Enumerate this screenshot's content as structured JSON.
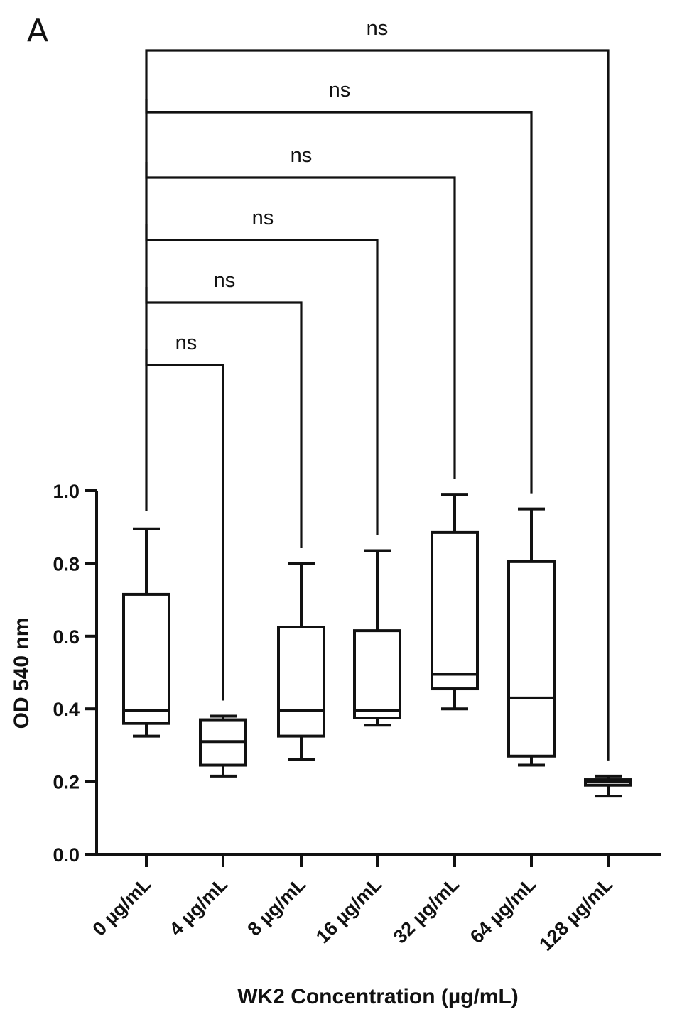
{
  "panel_label": "A",
  "chart_data": {
    "type": "box",
    "xlabel": "WK2 Concentration (µg/mL)",
    "ylabel": "OD 540 nm",
    "ylim": [
      0.0,
      1.0
    ],
    "yticks": [
      0.0,
      0.2,
      0.4,
      0.6,
      0.8,
      1.0
    ],
    "ytick_labels": [
      "0.0",
      "0.2",
      "0.4",
      "0.6",
      "0.8",
      "1.0"
    ],
    "categories": [
      "0 µg/mL",
      "4 µg/mL",
      "8 µg/mL",
      "16 µg/mL",
      "32 µg/mL",
      "64 µg/mL",
      "128 µg/mL"
    ],
    "boxes": [
      {
        "min": 0.325,
        "q1": 0.36,
        "median": 0.395,
        "q3": 0.715,
        "max": 0.895
      },
      {
        "min": 0.215,
        "q1": 0.245,
        "median": 0.31,
        "q3": 0.37,
        "max": 0.38
      },
      {
        "min": 0.26,
        "q1": 0.325,
        "median": 0.395,
        "q3": 0.625,
        "max": 0.8
      },
      {
        "min": 0.355,
        "q1": 0.375,
        "median": 0.395,
        "q3": 0.615,
        "max": 0.835
      },
      {
        "min": 0.4,
        "q1": 0.455,
        "median": 0.495,
        "q3": 0.885,
        "max": 0.99
      },
      {
        "min": 0.245,
        "q1": 0.27,
        "median": 0.43,
        "q3": 0.805,
        "max": 0.95
      },
      {
        "min": 0.16,
        "q1": 0.19,
        "median": 0.2,
        "q3": 0.205,
        "max": 0.215
      }
    ],
    "comparisons": [
      {
        "from": "0 µg/mL",
        "to": "4 µg/mL",
        "label": "ns"
      },
      {
        "from": "0 µg/mL",
        "to": "8 µg/mL",
        "label": "ns"
      },
      {
        "from": "0 µg/mL",
        "to": "16 µg/mL",
        "label": "ns"
      },
      {
        "from": "0 µg/mL",
        "to": "32 µg/mL",
        "label": "ns"
      },
      {
        "from": "0 µg/mL",
        "to": "64 µg/mL",
        "label": "ns"
      },
      {
        "from": "0 µg/mL",
        "to": "128 µg/mL",
        "label": "ns"
      }
    ],
    "grid": false,
    "legend": "none"
  }
}
